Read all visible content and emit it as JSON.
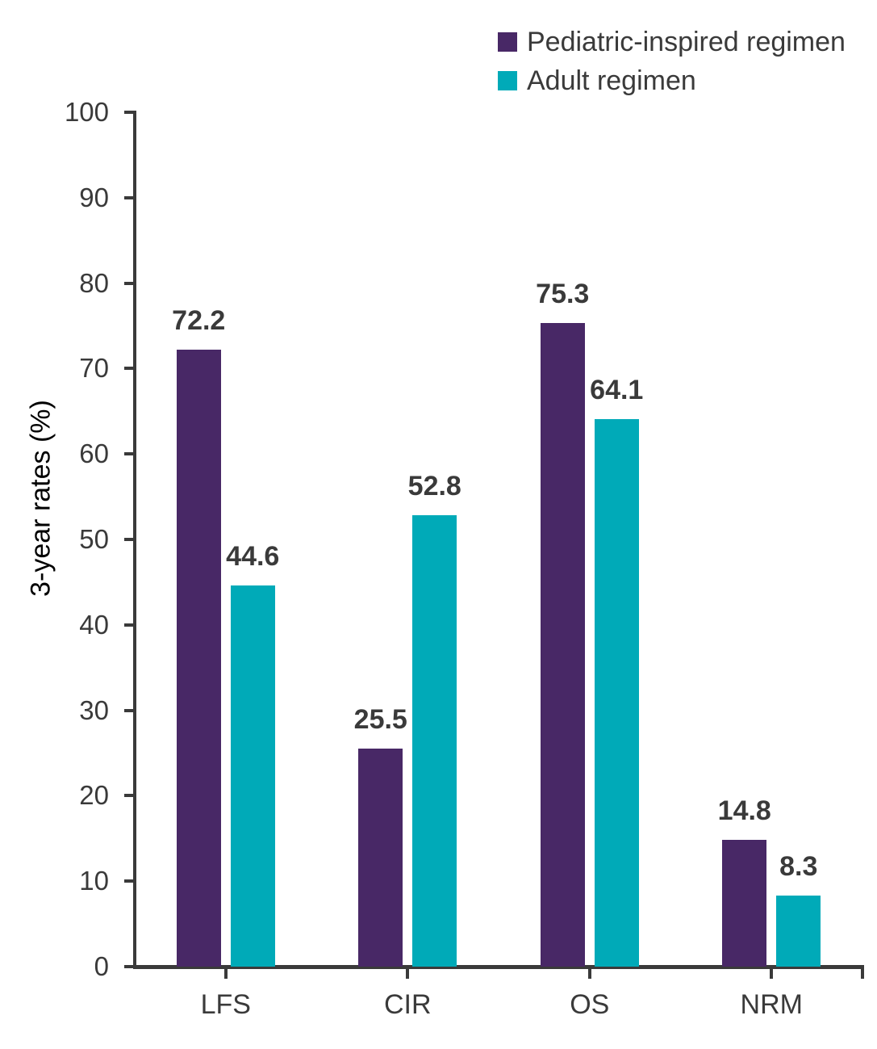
{
  "chart_data": {
    "type": "bar",
    "categories": [
      "LFS",
      "CIR",
      "OS",
      "NRM"
    ],
    "series": [
      {
        "name": "Pediatric-inspired regimen",
        "color": "#482866",
        "values": [
          72.2,
          25.5,
          75.3,
          14.8
        ]
      },
      {
        "name": "Adult regimen",
        "color": "#00aab8",
        "values": [
          44.6,
          52.8,
          64.1,
          8.3
        ]
      }
    ],
    "title": "",
    "xlabel": "",
    "ylabel": "3-year rates (%)",
    "ylim": [
      0,
      100
    ],
    "ytick_step": 10,
    "grid": "off",
    "legend_position": "top-right",
    "axis_color": "#3a3a3a",
    "text_color": "#3a3a3a"
  }
}
